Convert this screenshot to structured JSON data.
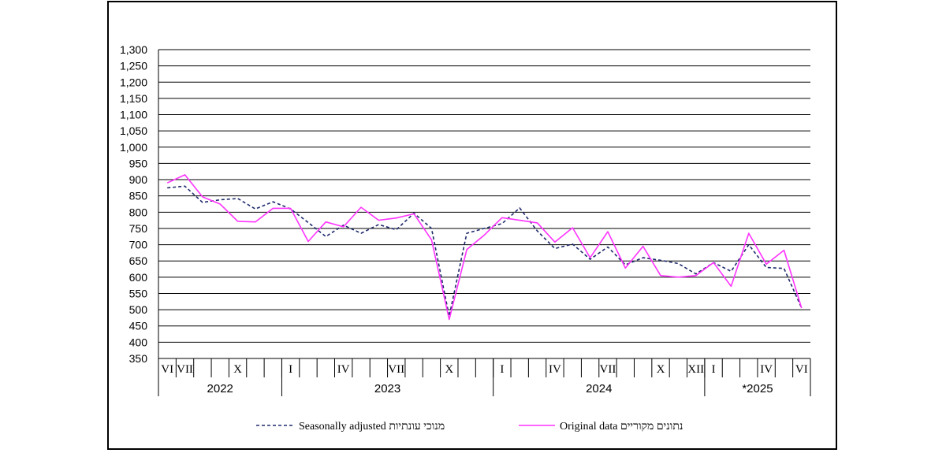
{
  "colors": {
    "seasonally_adjusted": "#1f2a6b",
    "original": "#ff33ff",
    "grid": "#000000"
  },
  "chart_data": {
    "type": "line",
    "ylim": [
      350,
      1300
    ],
    "yticks": [
      350,
      400,
      450,
      500,
      550,
      600,
      650,
      700,
      750,
      800,
      850,
      900,
      950,
      1000,
      1050,
      1100,
      1150,
      1200,
      1250,
      1300
    ],
    "ytick_labels": [
      "350",
      "400",
      "450",
      "500",
      "550",
      "600",
      "650",
      "700",
      "750",
      "800",
      "850",
      "900",
      "950",
      "1,000",
      "1,050",
      "1,100",
      "1,150",
      "1,200",
      "1,250",
      "1,300"
    ],
    "grid": true,
    "legend_position": "bottom",
    "x": [
      "2022-06",
      "2022-07",
      "2022-08",
      "2022-09",
      "2022-10",
      "2022-11",
      "2022-12",
      "2023-01",
      "2023-02",
      "2023-03",
      "2023-04",
      "2023-05",
      "2023-06",
      "2023-07",
      "2023-08",
      "2023-09",
      "2023-10",
      "2023-11",
      "2023-12",
      "2024-01",
      "2024-02",
      "2024-03",
      "2024-04",
      "2024-05",
      "2024-06",
      "2024-07",
      "2024-08",
      "2024-09",
      "2024-10",
      "2024-11",
      "2024-12",
      "2025-01",
      "2025-02",
      "2025-03",
      "2025-04",
      "2025-05",
      "2025-06"
    ],
    "month_labels": [
      "VI",
      "VII",
      "",
      "",
      "X",
      "",
      "",
      "I",
      "",
      "",
      "IV",
      "",
      "",
      "VII",
      "",
      "",
      "X",
      "",
      "",
      "I",
      "",
      "",
      "IV",
      "",
      "",
      "VII",
      "",
      "",
      "X",
      "",
      "XII",
      "I",
      "",
      "",
      "IV",
      "",
      "VI"
    ],
    "years": [
      {
        "label": "2022",
        "start": 0,
        "end": 6
      },
      {
        "label": "2023",
        "start": 7,
        "end": 18
      },
      {
        "label": "2024",
        "start": 19,
        "end": 30
      },
      {
        "label": "*2025",
        "start": 31,
        "end": 36
      }
    ],
    "series": [
      {
        "name": "Seasonally adjusted מנוכי עונתיות",
        "style": "dashed",
        "values": [
          875,
          880,
          830,
          838,
          842,
          810,
          832,
          810,
          768,
          725,
          760,
          735,
          762,
          746,
          797,
          750,
          480,
          735,
          750,
          765,
          813,
          742,
          688,
          702,
          655,
          693,
          638,
          660,
          652,
          642,
          610,
          645,
          618,
          700,
          630,
          627,
          505
        ]
      },
      {
        "name": "Original data נתונים מקוריים",
        "style": "solid",
        "values": [
          890,
          915,
          847,
          825,
          772,
          770,
          812,
          812,
          710,
          770,
          755,
          815,
          775,
          782,
          795,
          715,
          470,
          685,
          730,
          783,
          775,
          767,
          708,
          752,
          660,
          740,
          628,
          695,
          605,
          600,
          605,
          645,
          572,
          735,
          640,
          683,
          505
        ]
      }
    ]
  }
}
